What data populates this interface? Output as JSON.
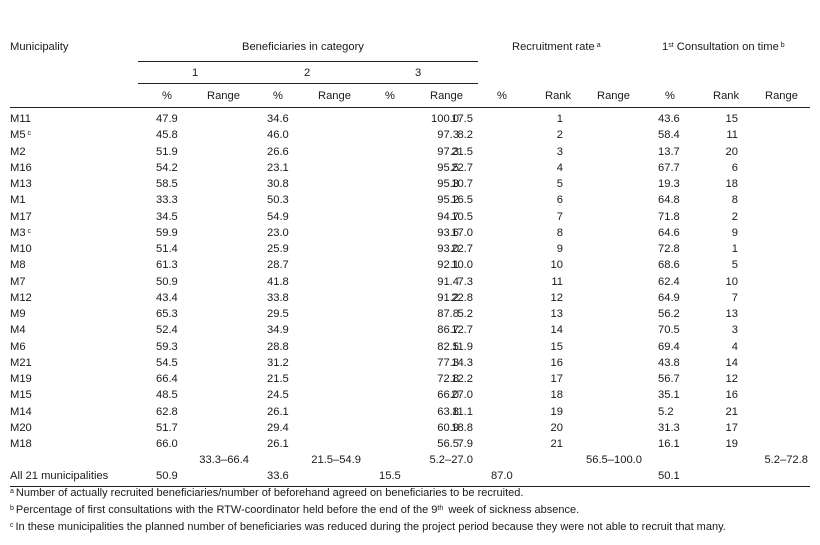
{
  "headers": {
    "municipality": "Municipality",
    "beneficiaries": "Beneficiaries in category",
    "cat1": "1",
    "cat2": "2",
    "cat3": "3",
    "recruitment": "Recruitment rate",
    "recruitment_note": "a",
    "consult_pre": "1",
    "consult_sup": "st",
    "consult_post": "Consultation on time",
    "consult_note": "b",
    "pct": "%",
    "range": "Range",
    "rank": "Rank"
  },
  "rows": [
    {
      "m": "M11",
      "sup": "",
      "c1": "47.9",
      "c2": "34.6",
      "c3": "17.5",
      "rr": "100.0",
      "rrk": "1",
      "co": "43.6",
      "cok": "15"
    },
    {
      "m": "M5",
      "sup": "c",
      "c1": "45.8",
      "c2": "46.0",
      "c3": "8.2",
      "rr": "97.3",
      "rrk": "2",
      "co": "58.4",
      "cok": "11"
    },
    {
      "m": "M2",
      "sup": "",
      "c1": "51.9",
      "c2": "26.6",
      "c3": "21.5",
      "rr": "97.3",
      "rrk": "3",
      "co": "13.7",
      "cok": "20"
    },
    {
      "m": "M16",
      "sup": "",
      "c1": "54.2",
      "c2": "23.1",
      "c3": "22.7",
      "rr": "95.5",
      "rrk": "4",
      "co": "67.7",
      "cok": "6"
    },
    {
      "m": "M13",
      "sup": "",
      "c1": "58.5",
      "c2": "30.8",
      "c3": "10.7",
      "rr": "95.3",
      "rrk": "5",
      "co": "19.3",
      "cok": "18"
    },
    {
      "m": "M1",
      "sup": "",
      "c1": "33.3",
      "c2": "50.3",
      "c3": "16.5",
      "rr": "95.2",
      "rrk": "6",
      "co": "64.8",
      "cok": "8"
    },
    {
      "m": "M17",
      "sup": "",
      "c1": "34.5",
      "c2": "54.9",
      "c3": "10.5",
      "rr": "94.7",
      "rrk": "7",
      "co": "71.8",
      "cok": "2"
    },
    {
      "m": "M3",
      "sup": "c",
      "c1": "59.9",
      "c2": "23.0",
      "c3": "17.0",
      "rr": "93.6",
      "rrk": "8",
      "co": "64.6",
      "cok": "9"
    },
    {
      "m": "M10",
      "sup": "",
      "c1": "51.4",
      "c2": "25.9",
      "c3": "22.7",
      "rr": "93.0",
      "rrk": "9",
      "co": "72.8",
      "cok": "1"
    },
    {
      "m": "M8",
      "sup": "",
      "c1": "61.3",
      "c2": "28.7",
      "c3": "10.0",
      "rr": "92.1",
      "rrk": "10",
      "co": "68.6",
      "cok": "5"
    },
    {
      "m": "M7",
      "sup": "",
      "c1": "50.9",
      "c2": "41.8",
      "c3": "7.3",
      "rr": "91.4",
      "rrk": "11",
      "co": "62.4",
      "cok": "10"
    },
    {
      "m": "M12",
      "sup": "",
      "c1": "43.4",
      "c2": "33.8",
      "c3": "22.8",
      "rr": "91.2",
      "rrk": "12",
      "co": "64.9",
      "cok": "7"
    },
    {
      "m": "M9",
      "sup": "",
      "c1": "65.3",
      "c2": "29.5",
      "c3": "5.2",
      "rr": "87.8",
      "rrk": "13",
      "co": "56.2",
      "cok": "13"
    },
    {
      "m": "M4",
      "sup": "",
      "c1": "52.4",
      "c2": "34.9",
      "c3": "12.7",
      "rr": "86.7",
      "rrk": "14",
      "co": "70.5",
      "cok": "3"
    },
    {
      "m": "M6",
      "sup": "",
      "c1": "59.3",
      "c2": "28.8",
      "c3": "11.9",
      "rr": "82.5",
      "rrk": "15",
      "co": "69.4",
      "cok": "4"
    },
    {
      "m": "M21",
      "sup": "",
      "c1": "54.5",
      "c2": "31.2",
      "c3": "14.3",
      "rr": "77.3",
      "rrk": "16",
      "co": "43.8",
      "cok": "14"
    },
    {
      "m": "M19",
      "sup": "",
      "c1": "66.4",
      "c2": "21.5",
      "c3": "12.2",
      "rr": "72.8",
      "rrk": "17",
      "co": "56.7",
      "cok": "12"
    },
    {
      "m": "M15",
      "sup": "",
      "c1": "48.5",
      "c2": "24.5",
      "c3": "27.0",
      "rr": "66.0",
      "rrk": "18",
      "co": "35.1",
      "cok": "16"
    },
    {
      "m": "M14",
      "sup": "",
      "c1": "62.8",
      "c2": "26.1",
      "c3": "11.1",
      "rr": "63.8",
      "rrk": "19",
      "co": "5.2",
      "cok": "21"
    },
    {
      "m": "M20",
      "sup": "",
      "c1": "51.7",
      "c2": "29.4",
      "c3": "18.8",
      "rr": "60.9",
      "rrk": "20",
      "co": "31.3",
      "cok": "17"
    },
    {
      "m": "M18",
      "sup": "",
      "c1": "66.0",
      "c2": "26.1",
      "c3": "7.9",
      "rr": "56.5",
      "rrk": "21",
      "co": "16.1",
      "cok": "19"
    }
  ],
  "ranges": {
    "c1": "33.3–66.4",
    "c2": "21.5–54.9",
    "c3": "5.2–27.0",
    "rr": "56.5–100.0",
    "co": "5.2–72.8"
  },
  "total": {
    "label": "All 21 municipalities",
    "c1": "50.9",
    "c2": "33.6",
    "c3": "15.5",
    "rr": "87.0",
    "co": "50.1"
  },
  "footnotes": [
    {
      "mark": "a",
      "text": "Number of actually recruited beneficiaries/number of beforehand agreed on beneficiaries to be recruited."
    },
    {
      "mark": "b",
      "pre": "Percentage of first consultations with the RTW-coordinator held before the end of the 9",
      "sup": "th",
      "post": " week of sickness absence."
    },
    {
      "mark": "c",
      "text": "In these municipalities the planned number of beneficiaries was reduced during the project period because they were not able to recruit that many."
    }
  ]
}
